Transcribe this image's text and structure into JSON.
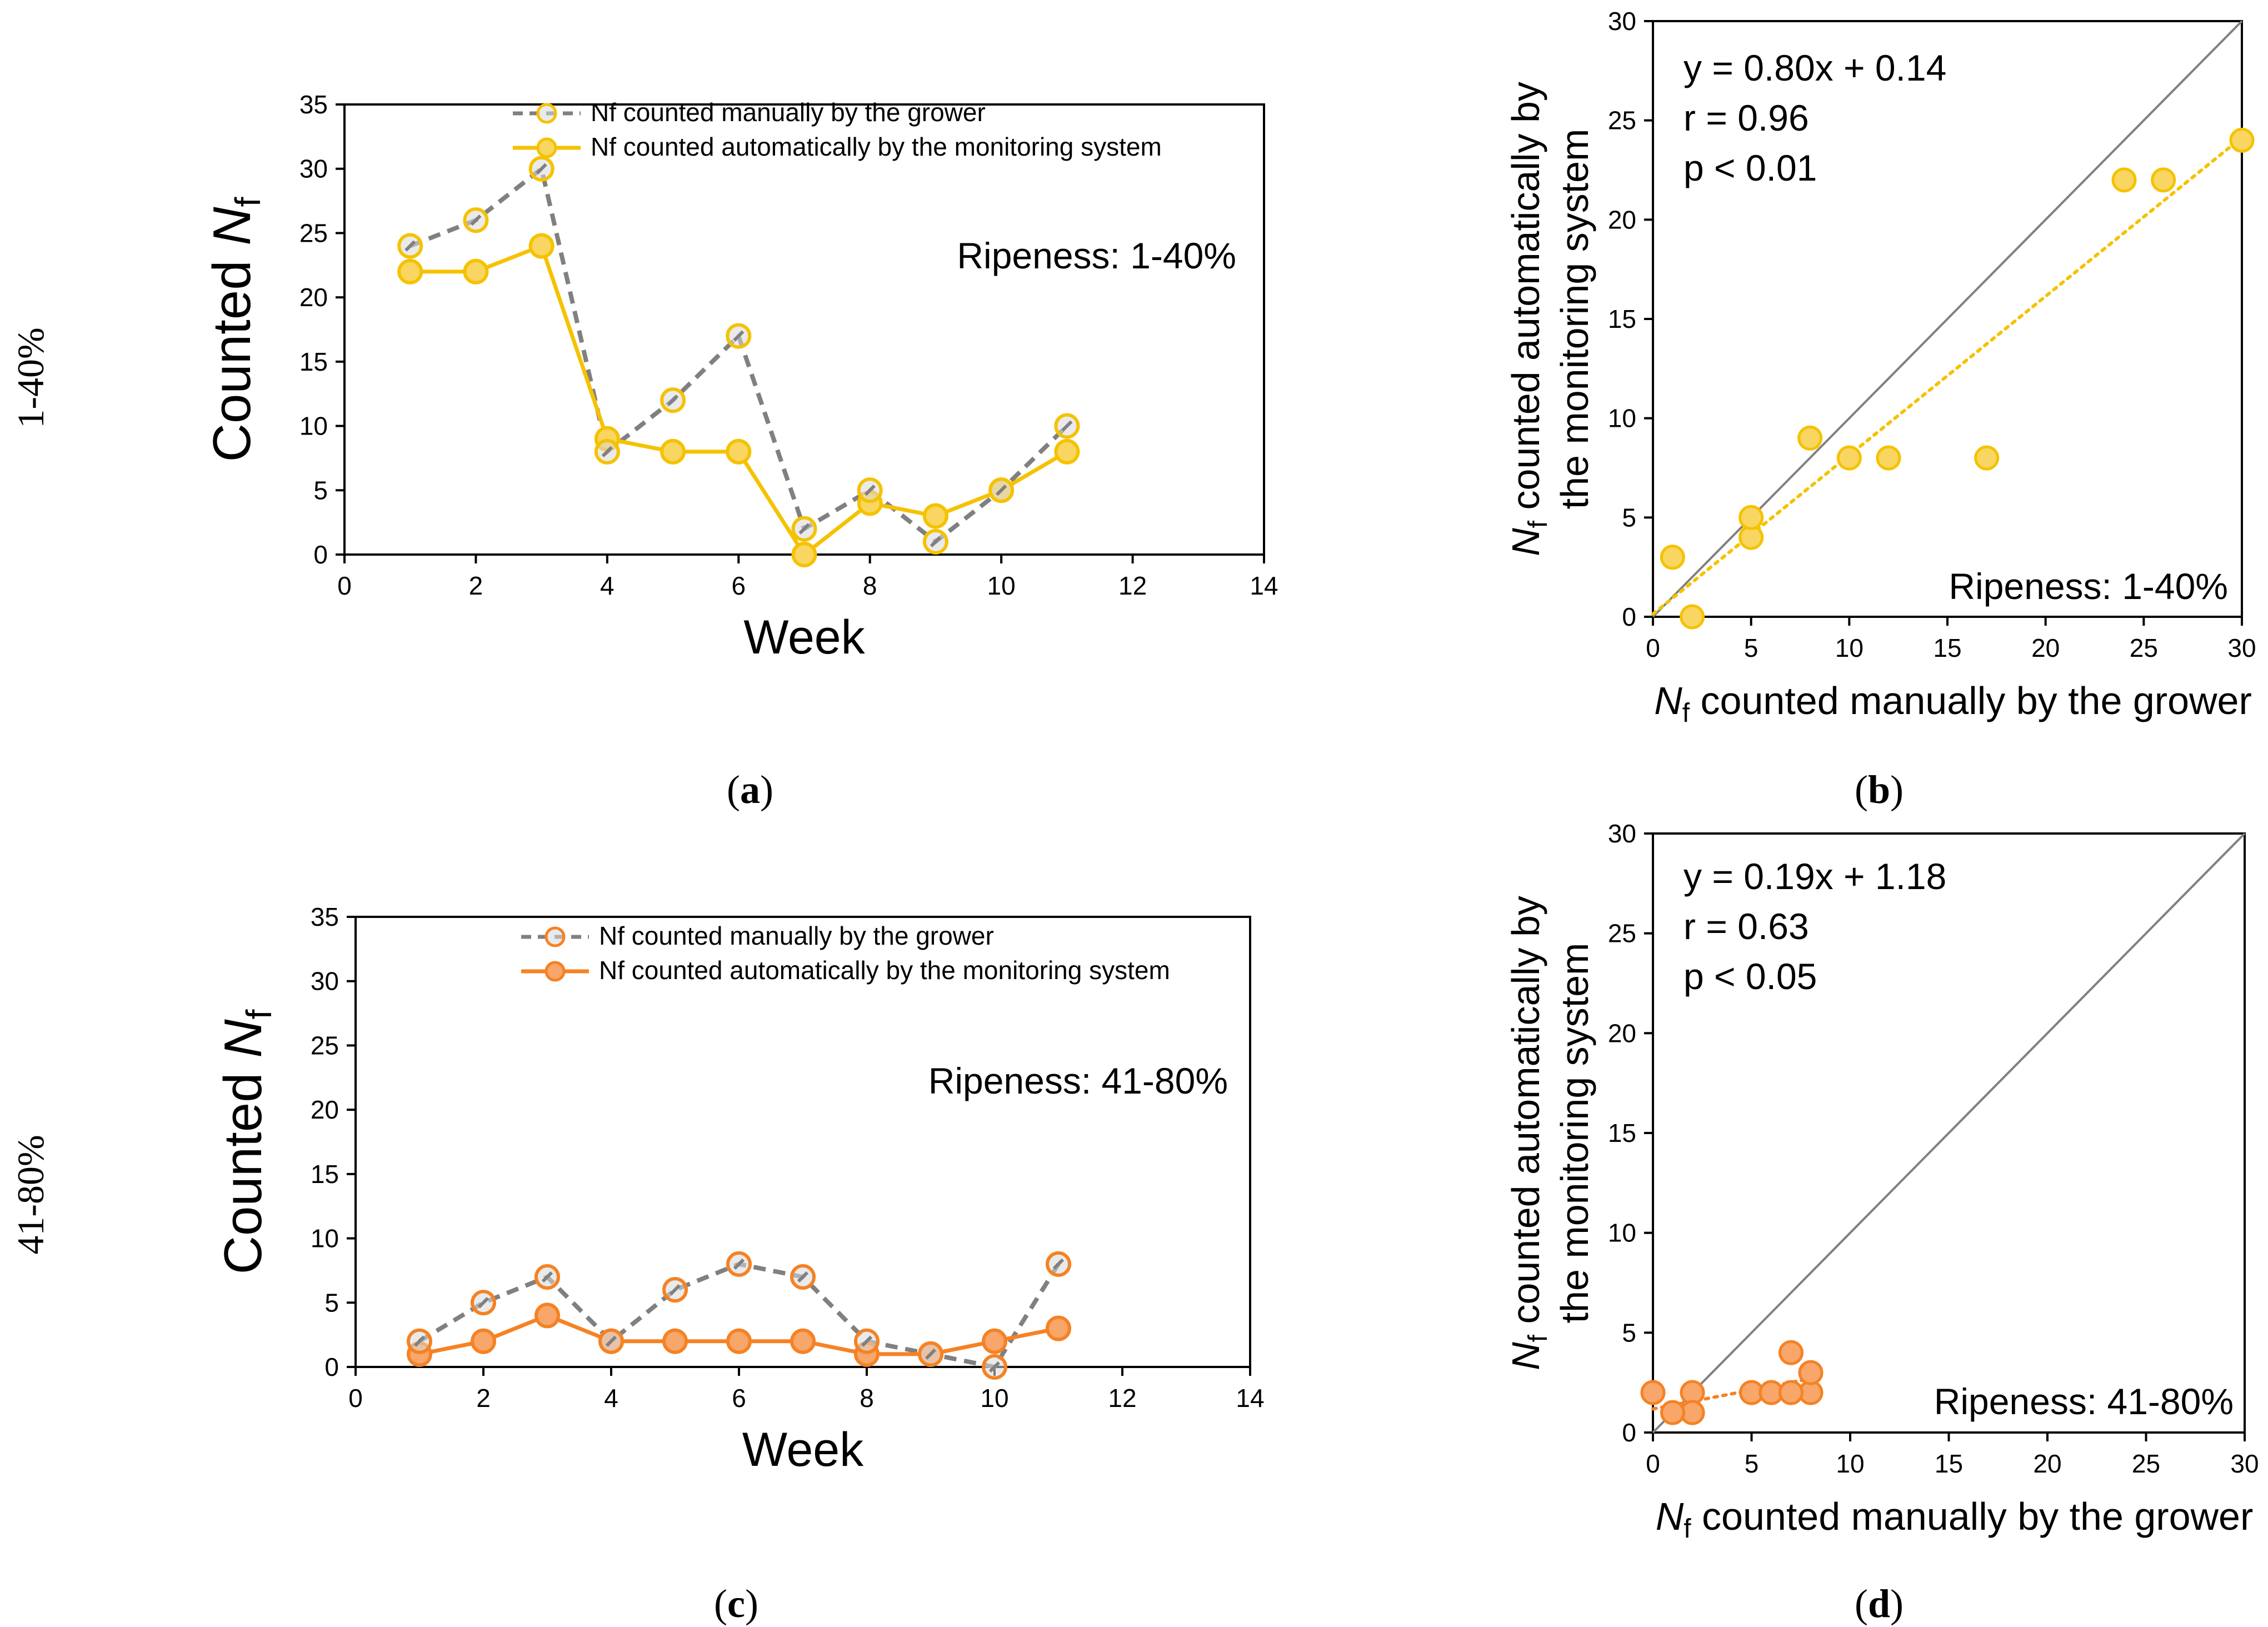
{
  "colors": {
    "gold": "#F5C200",
    "gold_fill": "#F8D661",
    "orange": "#F58224",
    "orange_fill": "#F8A66A",
    "manual_line": "#808080",
    "manual_fill": "#D9D9D9",
    "identity_line": "#808080",
    "axis": "#000000"
  },
  "row_labels": [
    "1-40%",
    "41-80%"
  ],
  "chart_data": [
    {
      "id": "a",
      "type": "line",
      "panel_label": "(a)",
      "panel_letter": "a",
      "xlabel": "Week",
      "ylabel_main": "Counted ",
      "ylabel_italic": "N",
      "ylabel_sub": "f",
      "xlim": [
        0,
        14
      ],
      "ylim": [
        0,
        35
      ],
      "xticks": [
        0,
        2,
        4,
        6,
        8,
        10,
        12,
        14
      ],
      "yticks": [
        0,
        5,
        10,
        15,
        20,
        25,
        30,
        35
      ],
      "annotation": "Ripeness: 1-40%",
      "accent": "gold",
      "series": [
        {
          "name": "Nf counted manually by the grower",
          "style": "manual",
          "x": [
            1,
            2,
            3,
            4,
            5,
            6,
            7,
            8,
            9,
            10,
            11
          ],
          "y": [
            24,
            26,
            30,
            8,
            12,
            17,
            2,
            5,
            1,
            5,
            10
          ]
        },
        {
          "name": "Nf counted automatically by the monitoring system",
          "style": "auto",
          "x": [
            1,
            2,
            3,
            4,
            5,
            6,
            7,
            8,
            9,
            10,
            11
          ],
          "y": [
            22,
            22,
            24,
            9,
            8,
            8,
            0,
            4,
            3,
            5,
            8
          ]
        }
      ]
    },
    {
      "id": "b",
      "type": "scatter",
      "panel_label": "(b)",
      "panel_letter": "b",
      "xlabel_italic": "N",
      "xlabel_sub": "f",
      "xlabel_rest": " counted manually by the grower",
      "ylabel_line1_italic": "N",
      "ylabel_line1_sub": "f",
      "ylabel_line1_rest": " counted automatically by",
      "ylabel_line2": "the monitoring system",
      "xlim": [
        0,
        30
      ],
      "ylim": [
        0,
        30
      ],
      "xticks": [
        0,
        5,
        10,
        15,
        20,
        25,
        30
      ],
      "yticks": [
        0,
        5,
        10,
        15,
        20,
        25,
        30
      ],
      "stats": [
        "y = 0.80x + 0.14",
        "r = 0.96",
        "p < 0.01"
      ],
      "annotation": "Ripeness: 1-40%",
      "accent": "gold",
      "fit": {
        "slope": 0.8,
        "intercept": 0.14,
        "x_range": [
          0,
          30
        ]
      },
      "points": {
        "x": [
          24,
          26,
          30,
          8,
          12,
          17,
          2,
          5,
          1,
          5,
          10
        ],
        "y": [
          22,
          22,
          24,
          9,
          8,
          8,
          0,
          4,
          3,
          5,
          8
        ]
      }
    },
    {
      "id": "c",
      "type": "line",
      "panel_label": "(c)",
      "panel_letter": "c",
      "xlabel": "Week",
      "ylabel_main": "Counted ",
      "ylabel_italic": "N",
      "ylabel_sub": "f",
      "xlim": [
        0,
        14
      ],
      "ylim": [
        0,
        35
      ],
      "xticks": [
        0,
        2,
        4,
        6,
        8,
        10,
        12,
        14
      ],
      "yticks": [
        0,
        5,
        10,
        15,
        20,
        25,
        30,
        35
      ],
      "annotation": "Ripeness: 41-80%",
      "accent": "orange",
      "series": [
        {
          "name": "Nf counted manually by the grower",
          "style": "manual",
          "x": [
            1,
            2,
            3,
            4,
            5,
            6,
            7,
            8,
            9,
            10,
            11
          ],
          "y": [
            2,
            5,
            7,
            2,
            6,
            8,
            7,
            2,
            1,
            0,
            8
          ]
        },
        {
          "name": "Nf counted automatically by the monitoring system",
          "style": "auto",
          "x": [
            1,
            2,
            3,
            4,
            5,
            6,
            7,
            8,
            9,
            10,
            11
          ],
          "y": [
            1,
            2,
            4,
            2,
            2,
            2,
            2,
            1,
            1,
            2,
            3
          ]
        }
      ]
    },
    {
      "id": "d",
      "type": "scatter",
      "panel_label": "(d)",
      "panel_letter": "d",
      "xlabel_italic": "N",
      "xlabel_sub": "f",
      "xlabel_rest": " counted manually by the grower",
      "ylabel_line1_italic": "N",
      "ylabel_line1_sub": "f",
      "ylabel_line1_rest": " counted automatically by",
      "ylabel_line2": "the monitoring system",
      "xlim": [
        0,
        30
      ],
      "ylim": [
        0,
        30
      ],
      "xticks": [
        0,
        5,
        10,
        15,
        20,
        25,
        30
      ],
      "yticks": [
        0,
        5,
        10,
        15,
        20,
        25,
        30
      ],
      "stats": [
        "y = 0.19x + 1.18",
        "r = 0.63",
        "p < 0.05"
      ],
      "annotation": "Ripeness: 41-80%",
      "accent": "orange",
      "fit": {
        "slope": 0.19,
        "intercept": 1.18,
        "x_range": [
          0,
          8
        ]
      },
      "points": {
        "x": [
          2,
          5,
          7,
          2,
          6,
          8,
          7,
          2,
          1,
          0,
          8
        ],
        "y": [
          1,
          2,
          4,
          2,
          2,
          2,
          2,
          1,
          1,
          2,
          3
        ]
      }
    }
  ]
}
